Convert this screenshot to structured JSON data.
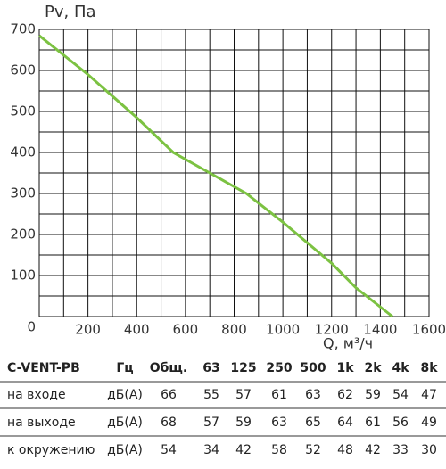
{
  "chart_data": {
    "type": "line",
    "y_label": "Pv, Па",
    "x_label": "Q, м³/ч",
    "x": [
      0,
      200,
      400,
      550,
      700,
      850,
      1000,
      1200,
      1300,
      1450
    ],
    "series": [
      {
        "color": "#7cc242",
        "values": [
          685,
          590,
          485,
          400,
          350,
          300,
          230,
          130,
          70,
          0
        ]
      }
    ],
    "xlim": [
      0,
      1600
    ],
    "xticks": [
      0,
      200,
      400,
      600,
      800,
      1000,
      1200,
      1400,
      1600
    ],
    "ylim": [
      0,
      700
    ],
    "yticks": [
      0,
      100,
      200,
      300,
      400,
      500,
      600,
      700
    ],
    "grid": true
  },
  "table": {
    "header": [
      "C-VENT-PB",
      "Гц",
      "Общ.",
      "63",
      "125",
      "250",
      "500",
      "1k",
      "2k",
      "4k",
      "8k"
    ],
    "rows": [
      [
        "на входе",
        "дБ(А)",
        66,
        55,
        57,
        61,
        63,
        62,
        59,
        54,
        47
      ],
      [
        "на выходе",
        "дБ(А)",
        68,
        57,
        59,
        63,
        65,
        64,
        61,
        56,
        49
      ],
      [
        "к окружению",
        "дБ(А)",
        54,
        34,
        42,
        58,
        52,
        48,
        42,
        33,
        30
      ]
    ]
  }
}
